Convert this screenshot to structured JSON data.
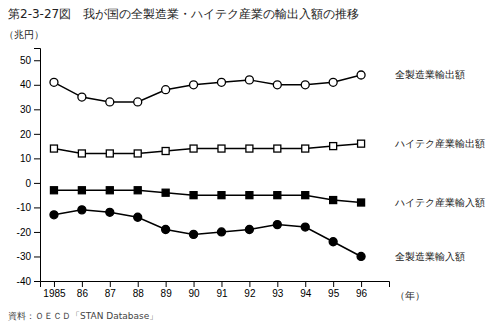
{
  "chart_data": {
    "type": "line",
    "title": "第2-3-27図　我が国の全製造業・ハイテク産業の輸出入額の推移",
    "ylabel": "（兆円）",
    "xlabel": "（年）",
    "annotations": [
      "資料：ＯＥＣＤ「STAN Database」"
    ],
    "x": [
      1985,
      1986,
      1987,
      1988,
      1989,
      1990,
      1991,
      1992,
      1993,
      1994,
      1995,
      1996
    ],
    "series": [
      {
        "name": "全製造業輸出額",
        "color": "#000000",
        "marker": "circle-open",
        "values": [
          41,
          35,
          33,
          33,
          38,
          40,
          41,
          42,
          40,
          40,
          41,
          44
        ]
      },
      {
        "name": "ハイテク産業輸出額",
        "color": "#000000",
        "marker": "square-open",
        "values": [
          14,
          12,
          12,
          12,
          13,
          14,
          14,
          14,
          14,
          14,
          15,
          16
        ]
      },
      {
        "name": "ハイテク産業輸入額",
        "color": "#000000",
        "marker": "square",
        "values": [
          -3,
          -3,
          -3,
          -3,
          -4,
          -5,
          -5,
          -5,
          -5,
          -5,
          -7,
          -8
        ]
      },
      {
        "name": "全製造業輸入額",
        "color": "#000000",
        "marker": "circle",
        "values": [
          -13,
          -11,
          -12,
          -14,
          -19,
          -21,
          -20,
          -19,
          -17,
          -18,
          -24,
          -30
        ]
      }
    ],
    "xlim": [
      1984.5,
      1997.0
    ],
    "xticks": [
      1985,
      {
        "value": 1986,
        "label": "86"
      },
      {
        "value": 1987,
        "label": "87"
      },
      {
        "value": 1988,
        "label": "88"
      },
      {
        "value": 1989,
        "label": "89"
      },
      {
        "value": 1990,
        "label": "90"
      },
      {
        "value": 1991,
        "label": "91"
      },
      {
        "value": 1992,
        "label": "92"
      },
      {
        "value": 1993,
        "label": "93"
      },
      {
        "value": 1994,
        "label": "94"
      },
      {
        "value": 1995,
        "label": "95"
      },
      {
        "value": 1996,
        "label": "96"
      }
    ],
    "ylim": [
      -40,
      55
    ],
    "yticks": [
      -40,
      -30,
      -20,
      -10,
      0,
      10,
      20,
      30,
      40,
      50
    ],
    "legend": "right",
    "grid": false
  }
}
